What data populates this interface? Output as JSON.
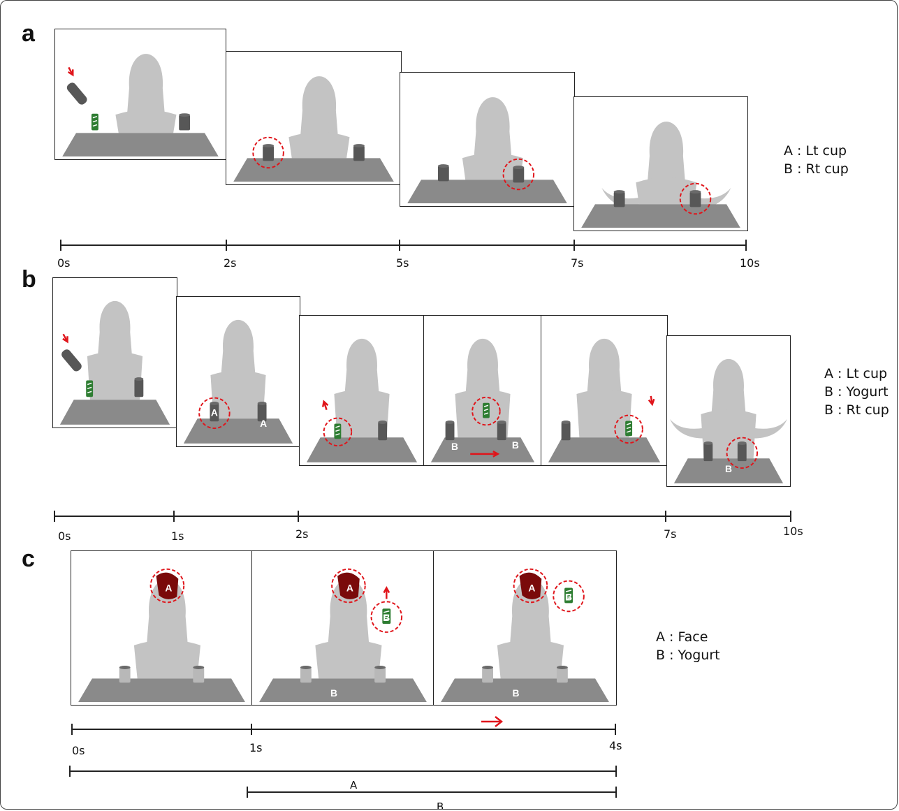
{
  "panels": {
    "a": {
      "letter": "a",
      "legend": [
        "A : Lt cup",
        "B : Rt cup"
      ],
      "ticks": [
        "0s",
        "2s",
        "5s",
        "7s",
        "10s"
      ],
      "frames": [
        {
          "scene": "pour",
          "highlight": "none"
        },
        {
          "scene": "cups",
          "highlight": "left-cup"
        },
        {
          "scene": "cross",
          "highlight": "right-cup"
        },
        {
          "scene": "shrug",
          "highlight": "right-cup"
        }
      ]
    },
    "b": {
      "letter": "b",
      "legend": [
        "A : Lt cup",
        "B : Yogurt",
        "B : Rt cup"
      ],
      "ticks": [
        "0s",
        "1s",
        "2s",
        "7s",
        "10s"
      ],
      "frames": [
        {
          "scene": "pour"
        },
        {
          "scene": "cups-labeled",
          "labels": [
            "A",
            "A"
          ]
        },
        {
          "scene": "lift-yogurt"
        },
        {
          "scene": "move-yogurt",
          "labels": [
            "B",
            "B"
          ]
        },
        {
          "scene": "put-yogurt"
        },
        {
          "scene": "shrug-labeled",
          "labels": [
            "B"
          ]
        }
      ]
    },
    "c": {
      "letter": "c",
      "legend": [
        "A : Face",
        "B : Yogurt"
      ],
      "ticks": [
        "0s",
        "1s",
        "4s"
      ],
      "aoi_spans": [
        "A",
        "B"
      ],
      "frames": [
        {
          "scene": "face",
          "labels": [
            "A"
          ]
        },
        {
          "scene": "face-yogurt-up",
          "labels": [
            "A",
            "B",
            "B"
          ]
        },
        {
          "scene": "face-yogurt-held",
          "labels": [
            "A",
            "B",
            "B"
          ]
        }
      ]
    }
  },
  "colors": {
    "figure_gray": "#c3c3c3",
    "table_gray": "#8a8a8a",
    "cup_gray": "#575757",
    "yogurt_green": "#2e7d32",
    "face_red": "#7a0a0a",
    "aoi_circle_red": "#e0151b",
    "arrow_red": "#e0151b"
  }
}
